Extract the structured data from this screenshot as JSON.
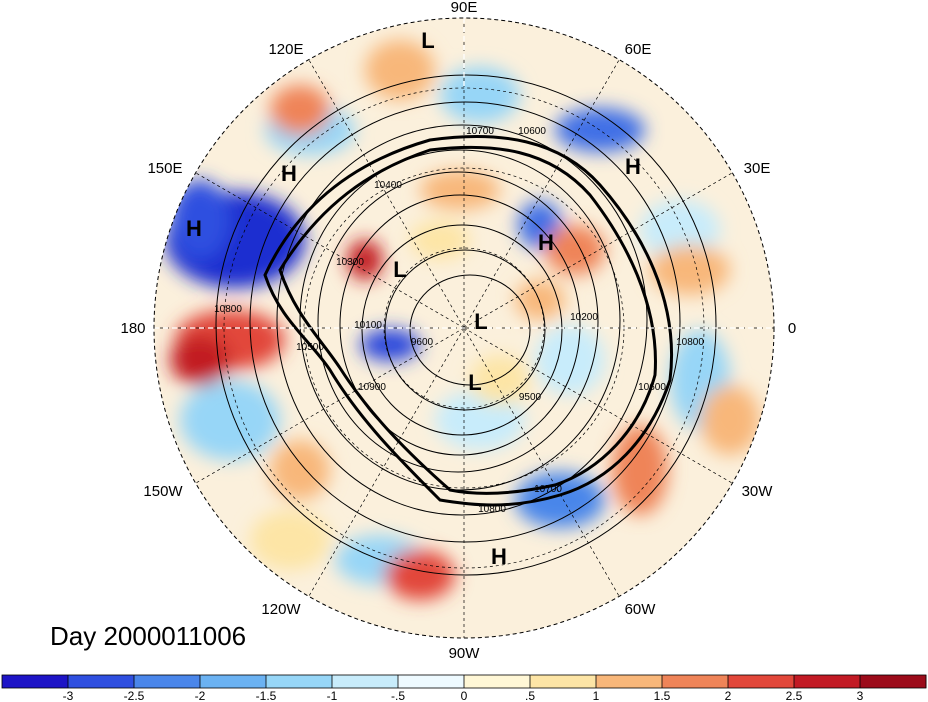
{
  "title": "Day 2000011006",
  "longitude_labels": [
    "90E",
    "60E",
    "30E",
    "0",
    "30W",
    "60W",
    "90W",
    "120W",
    "150W",
    "180",
    "150E",
    "120E"
  ],
  "pressure_centers": [
    {
      "label": "L",
      "name": "low-center-north-siberia"
    },
    {
      "label": "H",
      "name": "high-center-east-asia"
    },
    {
      "label": "H",
      "name": "high-center-north-pacific"
    },
    {
      "label": "L",
      "name": "low-center-bering"
    },
    {
      "label": "H",
      "name": "high-center-west-siberia"
    },
    {
      "label": "H",
      "name": "high-center-scandinavia"
    },
    {
      "label": "L",
      "name": "low-center-pole"
    },
    {
      "label": "L",
      "name": "low-center-canadian-archipelago"
    },
    {
      "label": "H",
      "name": "high-center-gulf-of-mexico"
    }
  ],
  "contour_labels": [
    "10700",
    "10600",
    "10400",
    "10300",
    "10200",
    "10800",
    "10100",
    "9600",
    "9500",
    "10500",
    "10900",
    "10700",
    "10800",
    "10600",
    "10800"
  ],
  "colorbar": {
    "tick_labels": [
      "-3",
      "-2.5",
      "-2",
      "-1.5",
      "-1",
      "-.5",
      "0",
      ".5",
      "1",
      "1.5",
      "2",
      "2.5",
      "3"
    ],
    "colors": [
      "#1d14c6",
      "#2f4fe0",
      "#4a86ea",
      "#6bb2f2",
      "#97d6f7",
      "#c8ecfb",
      "#eefaff",
      "#fff7d6",
      "#fde5a6",
      "#f8b77a",
      "#ef8458",
      "#e2473a",
      "#c21a24",
      "#9c0b1a"
    ]
  }
}
